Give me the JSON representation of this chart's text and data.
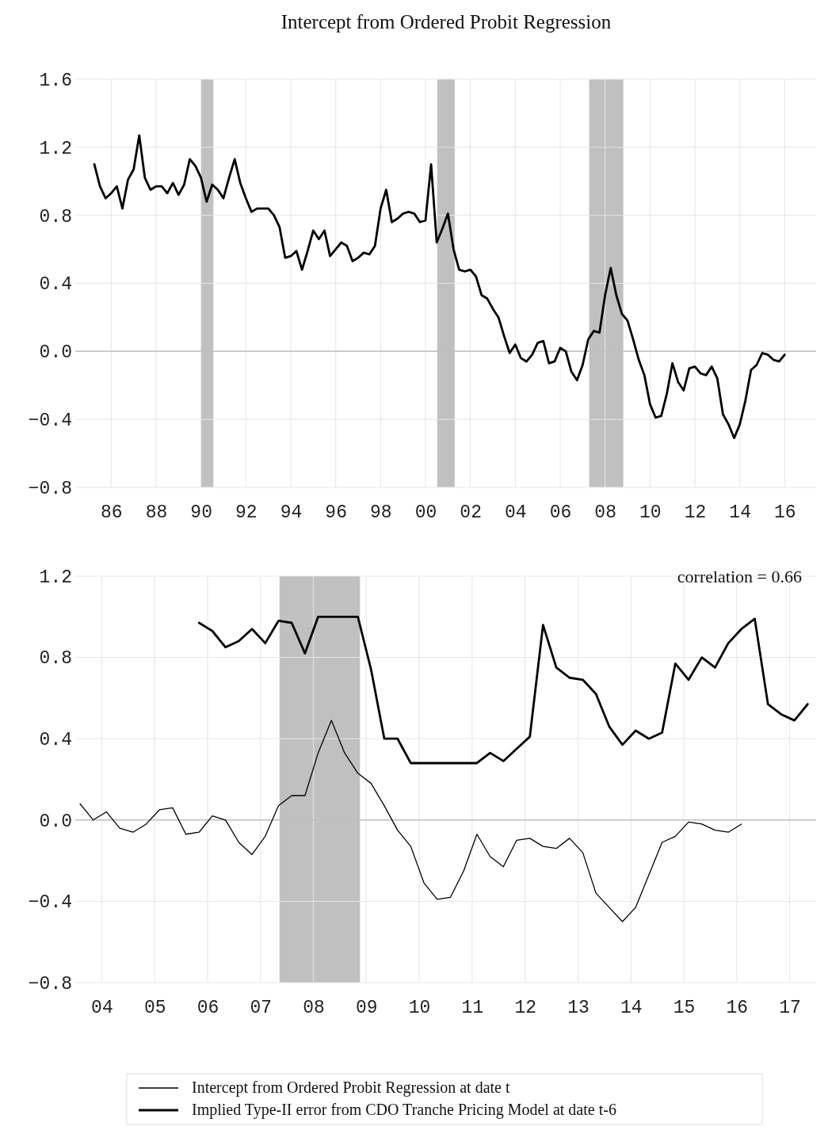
{
  "chart_data": [
    {
      "type": "line",
      "title": "Intercept from Ordered Probit Regression",
      "xlim": [
        1984.4,
        2017.4
      ],
      "ylim": [
        -0.8,
        1.6
      ],
      "xticks": [
        {
          "value": 1986,
          "label": "86"
        },
        {
          "value": 1988,
          "label": "88"
        },
        {
          "value": 1990,
          "label": "90"
        },
        {
          "value": 1992,
          "label": "92"
        },
        {
          "value": 1994,
          "label": "94"
        },
        {
          "value": 1996,
          "label": "96"
        },
        {
          "value": 1998,
          "label": "98"
        },
        {
          "value": 2000,
          "label": "00"
        },
        {
          "value": 2002,
          "label": "02"
        },
        {
          "value": 2004,
          "label": "04"
        },
        {
          "value": 2006,
          "label": "06"
        },
        {
          "value": 2008,
          "label": "08"
        },
        {
          "value": 2010,
          "label": "10"
        },
        {
          "value": 2012,
          "label": "12"
        },
        {
          "value": 2014,
          "label": "14"
        },
        {
          "value": 2016,
          "label": "16"
        }
      ],
      "yticks": [
        {
          "value": -0.8,
          "label": "−0.8"
        },
        {
          "value": -0.4,
          "label": "−0.4"
        },
        {
          "value": 0,
          "label": "0.0"
        },
        {
          "value": 0.4,
          "label": "0.4"
        },
        {
          "value": 0.8,
          "label": "0.8"
        },
        {
          "value": 1.2,
          "label": "1.2"
        },
        {
          "value": 1.6,
          "label": "1.6"
        }
      ],
      "grid": true,
      "legend": false,
      "bands": [
        {
          "axis": "x",
          "from": 1990.0,
          "to": 1990.55,
          "color": "#c0c0c0"
        },
        {
          "axis": "x",
          "from": 2000.52,
          "to": 2001.3,
          "color": "#c0c0c0"
        },
        {
          "axis": "x",
          "from": 2007.29,
          "to": 2008.81,
          "color": "#c0c0c0"
        }
      ],
      "series": [
        {
          "color": "#000000",
          "x": [
            1985.25,
            1985.5,
            1985.75,
            1986.0,
            1986.25,
            1986.5,
            1986.75,
            1987.0,
            1987.25,
            1987.5,
            1987.75,
            1988.0,
            1988.25,
            1988.5,
            1988.75,
            1989.0,
            1989.25,
            1989.5,
            1989.75,
            1990.0,
            1990.25,
            1990.5,
            1990.75,
            1991.0,
            1991.25,
            1991.5,
            1991.75,
            1992.0,
            1992.25,
            1992.5,
            1992.75,
            1993.0,
            1993.25,
            1993.5,
            1993.75,
            1994.0,
            1994.25,
            1994.5,
            1994.75,
            1995.0,
            1995.25,
            1995.5,
            1995.75,
            1996.0,
            1996.25,
            1996.5,
            1996.75,
            1997.0,
            1997.25,
            1997.5,
            1997.75,
            1998.0,
            1998.25,
            1998.5,
            1998.75,
            1999.0,
            1999.25,
            1999.5,
            1999.75,
            2000.0,
            2000.25,
            2000.5,
            2000.75,
            2001.0,
            2001.25,
            2001.5,
            2001.75,
            2002.0,
            2002.25,
            2002.5,
            2002.75,
            2003.0,
            2003.25,
            2003.5,
            2003.75,
            2004.0,
            2004.25,
            2004.5,
            2004.75,
            2005.0,
            2005.25,
            2005.5,
            2005.75,
            2006.0,
            2006.25,
            2006.5,
            2006.75,
            2007.0,
            2007.25,
            2007.5,
            2007.75,
            2008.0,
            2008.25,
            2008.5,
            2008.75,
            2009.0,
            2009.25,
            2009.5,
            2009.75,
            2010.0,
            2010.25,
            2010.5,
            2010.75,
            2011.0,
            2011.25,
            2011.5,
            2011.75,
            2012.0,
            2012.25,
            2012.5,
            2012.75,
            2013.0,
            2013.25,
            2013.5,
            2013.75,
            2014.0,
            2014.25,
            2014.5,
            2014.75,
            2015.0,
            2015.25,
            2015.5,
            2015.75,
            2016.0
          ],
          "values": [
            1.1,
            0.97,
            0.9,
            0.93,
            0.97,
            0.84,
            1.01,
            1.07,
            1.27,
            1.02,
            0.95,
            0.97,
            0.97,
            0.93,
            0.99,
            0.92,
            0.98,
            1.13,
            1.09,
            1.02,
            0.88,
            0.98,
            0.95,
            0.9,
            1.02,
            1.13,
            0.99,
            0.9,
            0.82,
            0.84,
            0.84,
            0.84,
            0.8,
            0.73,
            0.55,
            0.56,
            0.59,
            0.48,
            0.59,
            0.71,
            0.66,
            0.71,
            0.56,
            0.6,
            0.64,
            0.62,
            0.53,
            0.55,
            0.58,
            0.57,
            0.62,
            0.84,
            0.95,
            0.76,
            0.78,
            0.81,
            0.82,
            0.81,
            0.76,
            0.77,
            1.1,
            0.64,
            0.72,
            0.81,
            0.6,
            0.48,
            0.47,
            0.48,
            0.44,
            0.33,
            0.31,
            0.25,
            0.2,
            0.09,
            -0.01,
            0.04,
            -0.04,
            -0.06,
            -0.02,
            0.05,
            0.06,
            -0.07,
            -0.06,
            0.02,
            0.0,
            -0.12,
            -0.17,
            -0.08,
            0.07,
            0.12,
            0.11,
            0.33,
            0.49,
            0.33,
            0.22,
            0.18,
            0.07,
            -0.05,
            -0.14,
            -0.31,
            -0.39,
            -0.38,
            -0.25,
            -0.07,
            -0.18,
            -0.23,
            -0.1,
            -0.09,
            -0.13,
            -0.14,
            -0.09,
            -0.16,
            -0.37,
            -0.43,
            -0.51,
            -0.43,
            -0.29,
            -0.11,
            -0.08,
            -0.01,
            -0.02,
            -0.05,
            -0.06,
            -0.02
          ]
        }
      ]
    },
    {
      "type": "line",
      "xlim": [
        2003.5,
        2017.5
      ],
      "ylim": [
        -0.8,
        1.2
      ],
      "xticks": [
        {
          "value": 2004,
          "label": "04"
        },
        {
          "value": 2005,
          "label": "05"
        },
        {
          "value": 2006,
          "label": "06"
        },
        {
          "value": 2007,
          "label": "07"
        },
        {
          "value": 2008,
          "label": "08"
        },
        {
          "value": 2009,
          "label": "09"
        },
        {
          "value": 2010,
          "label": "10"
        },
        {
          "value": 2011,
          "label": "11"
        },
        {
          "value": 2012,
          "label": "12"
        },
        {
          "value": 2013,
          "label": "13"
        },
        {
          "value": 2014,
          "label": "14"
        },
        {
          "value": 2015,
          "label": "15"
        },
        {
          "value": 2016,
          "label": "16"
        },
        {
          "value": 2017,
          "label": "17"
        }
      ],
      "yticks": [
        {
          "value": -0.8,
          "label": "−0.8"
        },
        {
          "value": -0.4,
          "label": "−0.4"
        },
        {
          "value": 0,
          "label": "0.0"
        },
        {
          "value": 0.4,
          "label": "0.4"
        },
        {
          "value": 0.8,
          "label": "0.8"
        },
        {
          "value": 1.2,
          "label": "1.2"
        }
      ],
      "grid": true,
      "legend": "bottom",
      "annotations": [
        "correlation = 0.66"
      ],
      "bands": [
        {
          "axis": "x",
          "from": 2007.36,
          "to": 2008.88,
          "color": "#c0c0c0"
        }
      ],
      "series": [
        {
          "name": "Intercept from Ordered Probit Regression at date t",
          "color": "#000000",
          "x": [
            2003.59,
            2003.84,
            2004.09,
            2004.34,
            2004.59,
            2004.84,
            2005.09,
            2005.34,
            2005.59,
            2005.84,
            2006.09,
            2006.34,
            2006.59,
            2006.84,
            2007.09,
            2007.34,
            2007.59,
            2007.84,
            2008.09,
            2008.34,
            2008.59,
            2008.84,
            2009.09,
            2009.34,
            2009.59,
            2009.84,
            2010.09,
            2010.34,
            2010.59,
            2010.84,
            2011.09,
            2011.34,
            2011.59,
            2011.84,
            2012.09,
            2012.34,
            2012.59,
            2012.84,
            2013.09,
            2013.34,
            2013.59,
            2013.84,
            2014.09,
            2014.34,
            2014.59,
            2014.84,
            2015.09,
            2015.34,
            2015.59,
            2015.84,
            2016.09
          ],
          "values": [
            0.08,
            0.0,
            0.04,
            -0.04,
            -0.06,
            -0.02,
            0.05,
            0.06,
            -0.07,
            -0.06,
            0.02,
            0.0,
            -0.11,
            -0.17,
            -0.08,
            0.07,
            0.12,
            0.12,
            0.33,
            0.49,
            0.33,
            0.23,
            0.18,
            0.07,
            -0.05,
            -0.13,
            -0.31,
            -0.39,
            -0.38,
            -0.25,
            -0.07,
            -0.18,
            -0.23,
            -0.1,
            -0.09,
            -0.13,
            -0.14,
            -0.09,
            -0.16,
            -0.36,
            -0.43,
            -0.5,
            -0.43,
            -0.27,
            -0.11,
            -0.08,
            -0.01,
            -0.02,
            -0.05,
            -0.06,
            -0.02
          ]
        },
        {
          "name": "Implied Type-II error from CDO Tranche Pricing Model at date t-6",
          "color": "#000000",
          "x": [
            2005.84,
            2006.09,
            2006.34,
            2006.59,
            2006.84,
            2007.09,
            2007.34,
            2007.59,
            2007.84,
            2008.09,
            2008.34,
            2008.59,
            2008.84,
            2009.09,
            2009.34,
            2009.59,
            2009.84,
            2010.09,
            2010.34,
            2010.59,
            2010.84,
            2011.09,
            2011.34,
            2011.59,
            2011.84,
            2012.09,
            2012.34,
            2012.59,
            2012.84,
            2013.09,
            2013.34,
            2013.59,
            2013.84,
            2014.09,
            2014.34,
            2014.59,
            2014.84,
            2015.09,
            2015.34,
            2015.59,
            2015.84,
            2016.09,
            2016.34,
            2016.59,
            2016.84,
            2017.09,
            2017.34
          ],
          "values": [
            0.97,
            0.93,
            0.85,
            0.88,
            0.94,
            0.87,
            0.98,
            0.97,
            0.82,
            1.0,
            1.0,
            1.0,
            1.0,
            0.74,
            0.4,
            0.4,
            0.28,
            0.28,
            0.28,
            0.28,
            0.28,
            0.28,
            0.33,
            0.29,
            0.35,
            0.41,
            0.96,
            0.75,
            0.7,
            0.69,
            0.62,
            0.46,
            0.37,
            0.44,
            0.4,
            0.43,
            0.77,
            0.69,
            0.8,
            0.75,
            0.87,
            0.94,
            0.99,
            0.57,
            0.52,
            0.49,
            0.57
          ]
        }
      ]
    }
  ]
}
